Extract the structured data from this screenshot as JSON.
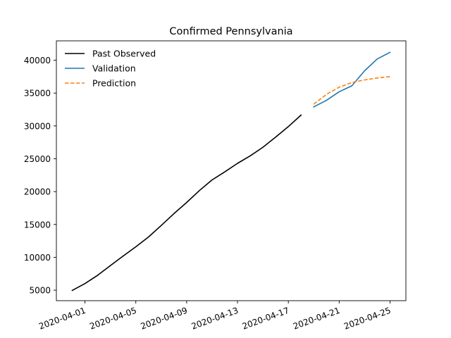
{
  "chart_data": {
    "type": "line",
    "title": "Confirmed Pennsylvania",
    "xlabel": "",
    "ylabel": "",
    "x_axis": {
      "kind": "date",
      "range": [
        "2020-03-29T18:00",
        "2020-04-26T06:00"
      ],
      "ticks": [
        "2020-04-01",
        "2020-04-05",
        "2020-04-09",
        "2020-04-13",
        "2020-04-17",
        "2020-04-21",
        "2020-04-25"
      ]
    },
    "y_axis": {
      "range": [
        3400,
        42950
      ],
      "ticks": [
        5000,
        10000,
        15000,
        20000,
        25000,
        30000,
        35000,
        40000
      ]
    },
    "grid": false,
    "legend": {
      "position": "top-left"
    },
    "series": [
      {
        "name": "Past Observed",
        "color": "#000000",
        "style": "solid",
        "x": [
          "2020-03-31",
          "2020-04-01",
          "2020-04-02",
          "2020-04-03",
          "2020-04-04",
          "2020-04-05",
          "2020-04-06",
          "2020-04-07",
          "2020-04-08",
          "2020-04-09",
          "2020-04-10",
          "2020-04-11",
          "2020-04-12",
          "2020-04-13",
          "2020-04-14",
          "2020-04-15",
          "2020-04-16",
          "2020-04-17",
          "2020-04-18"
        ],
        "y": [
          4963,
          6009,
          7268,
          8750,
          10200,
          11600,
          13100,
          14850,
          16650,
          18350,
          20150,
          21780,
          23000,
          24300,
          25450,
          26750,
          28300,
          29900,
          31650
        ]
      },
      {
        "name": "Validation",
        "color": "#1f77b4",
        "style": "solid",
        "x": [
          "2020-04-19",
          "2020-04-20",
          "2020-04-21",
          "2020-04-22",
          "2020-04-23",
          "2020-04-24",
          "2020-04-25"
        ],
        "y": [
          32900,
          33900,
          35200,
          36100,
          38400,
          40200,
          41200
        ]
      },
      {
        "name": "Prediction",
        "color": "#ff7f0e",
        "style": "dashed",
        "x": [
          "2020-04-19",
          "2020-04-20",
          "2020-04-21",
          "2020-04-22",
          "2020-04-23",
          "2020-04-24",
          "2020-04-25"
        ],
        "y": [
          33300,
          34800,
          35900,
          36600,
          37000,
          37300,
          37500
        ]
      }
    ]
  }
}
